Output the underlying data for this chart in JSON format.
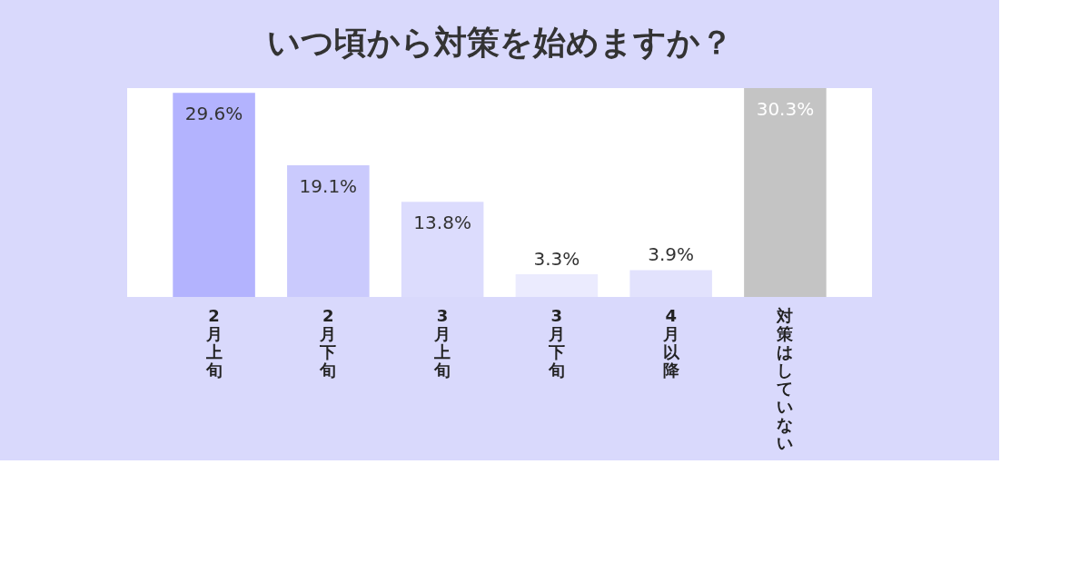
{
  "chart_data": {
    "type": "bar",
    "title": "いつ頃から対策を始めますか？",
    "categories": [
      "2月上旬",
      "2月下旬",
      "3月上旬",
      "3月下旬",
      "4月以降",
      "対策はしていない"
    ],
    "values": [
      29.6,
      19.1,
      13.8,
      3.3,
      3.9,
      30.3
    ],
    "value_labels": [
      "29.6%",
      "19.1%",
      "13.8%",
      "3.3%",
      "3.9%",
      "30.3%"
    ],
    "colors": [
      "#b3b3fe",
      "#cacafd",
      "#dcdcfd",
      "#ebebfe",
      "#e2e2fd",
      "#c4c4c4"
    ],
    "relative": false
  }
}
